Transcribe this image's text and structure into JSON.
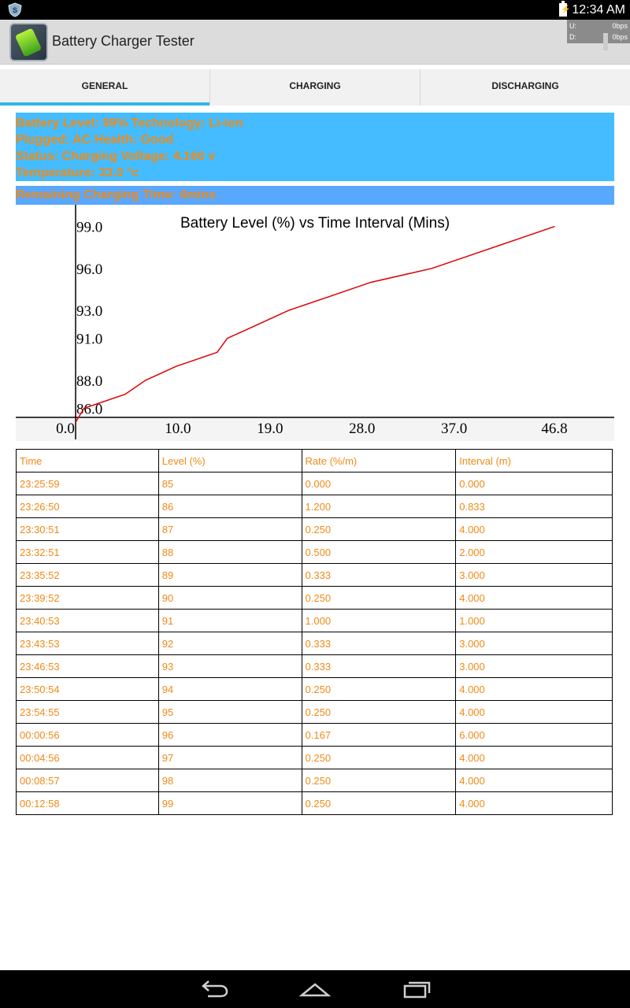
{
  "status_bar": {
    "time": "12:34 AM",
    "icons": [
      "shield-icon",
      "battery-charging-icon"
    ]
  },
  "action_bar": {
    "title": "Battery Charger Tester",
    "icon": "battery-app-icon",
    "net": {
      "u_label": "U:",
      "u_value": "0bps",
      "d_label": "D:",
      "d_value": "0bps"
    }
  },
  "tabs": [
    {
      "label": "GENERAL",
      "active": true
    },
    {
      "label": "CHARGING",
      "active": false
    },
    {
      "label": "DISCHARGING",
      "active": false
    }
  ],
  "info": {
    "line1": "Battery Level: 99% Technology: Li-ion",
    "line2": "Plugged: AC Health: Good",
    "line3": "Status: Charging Voltage: 4.166 v",
    "line4": "Temperature: 33.0 °c",
    "remaining": "Remaining Charging Time: 4mins"
  },
  "chart_data": {
    "type": "line",
    "title": "Battery Level (%) vs Time Interval (Mins)",
    "xlabel": "",
    "ylabel": "",
    "x_ticks": [
      "0.0",
      "10.0",
      "19.0",
      "28.0",
      "37.0",
      "46.8"
    ],
    "y_ticks": [
      "86.0",
      "88.0",
      "91.0",
      "93.0",
      "96.0",
      "99.0"
    ],
    "xlim": [
      0,
      46.8
    ],
    "ylim": [
      85.8,
      99.2
    ],
    "grid": false,
    "legend": "none",
    "series": [
      {
        "color": "#dd0000",
        "x": [
          0.0,
          0.833,
          4.833,
          6.833,
          9.833,
          13.833,
          14.833,
          17.833,
          20.833,
          24.833,
          28.833,
          34.833,
          38.833,
          42.833,
          46.833
        ],
        "y": [
          85,
          86,
          87,
          88,
          89,
          90,
          91,
          92,
          93,
          94,
          95,
          96,
          97,
          98,
          99
        ]
      }
    ]
  },
  "table": {
    "headers": [
      "Time",
      "Level (%)",
      "Rate (%/m)",
      "Interval (m)"
    ],
    "rows": [
      [
        "23:25:59",
        "85",
        "0.000",
        "0.000"
      ],
      [
        "23:26:50",
        "86",
        "1.200",
        "0.833"
      ],
      [
        "23:30:51",
        "87",
        "0.250",
        "4.000"
      ],
      [
        "23:32:51",
        "88",
        "0.500",
        "2.000"
      ],
      [
        "23:35:52",
        "89",
        "0.333",
        "3.000"
      ],
      [
        "23:39:52",
        "90",
        "0.250",
        "4.000"
      ],
      [
        "23:40:53",
        "91",
        "1.000",
        "1.000"
      ],
      [
        "23:43:53",
        "92",
        "0.333",
        "3.000"
      ],
      [
        "23:46:53",
        "93",
        "0.333",
        "3.000"
      ],
      [
        "23:50:54",
        "94",
        "0.250",
        "4.000"
      ],
      [
        "23:54:55",
        "95",
        "0.250",
        "4.000"
      ],
      [
        "00:00:56",
        "96",
        "0.167",
        "6.000"
      ],
      [
        "00:04:56",
        "97",
        "0.250",
        "4.000"
      ],
      [
        "00:08:57",
        "98",
        "0.250",
        "4.000"
      ],
      [
        "00:12:58",
        "99",
        "0.250",
        "4.000"
      ]
    ]
  },
  "nav_bar": {
    "icons": [
      "back-icon",
      "home-icon",
      "recent-apps-icon"
    ]
  },
  "colors": {
    "info_bg": "#44bcff",
    "remaining_bg": "#58a8ff",
    "accent_text": "#f08a18",
    "tab_indicator": "#33b5e5",
    "chart_line": "#dd0000"
  }
}
